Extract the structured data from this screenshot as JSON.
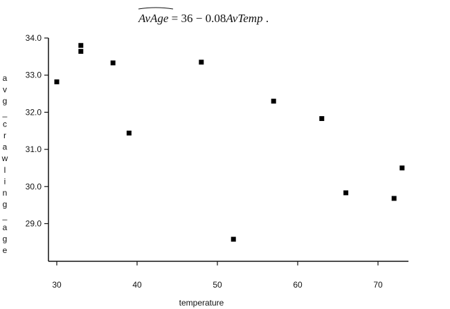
{
  "chart_data": {
    "type": "scatter",
    "title": {
      "lhs": "AvAge",
      "equals": " = ",
      "intercept": "36",
      "minus": " − ",
      "slope": "0.08",
      "rhs": "AvTemp",
      "end": " ."
    },
    "xlabel": "temperature",
    "ylabel": "avg_crawling_age",
    "xlim": [
      29.5,
      74
    ],
    "ylim": [
      28.0,
      34.1
    ],
    "xticks": [
      30,
      40,
      50,
      60,
      70
    ],
    "yticks": [
      29.0,
      30.0,
      31.0,
      32.0,
      33.0,
      34.0
    ],
    "ytick_labels": [
      "29.0",
      "30.0",
      "31.0",
      "32.0",
      "33.0",
      "34.0"
    ],
    "marker": "square",
    "color": "#000000",
    "points": [
      {
        "x": 30,
        "y": 32.82
      },
      {
        "x": 33,
        "y": 33.8
      },
      {
        "x": 33,
        "y": 33.64
      },
      {
        "x": 37,
        "y": 33.33
      },
      {
        "x": 39,
        "y": 31.44
      },
      {
        "x": 48,
        "y": 33.35
      },
      {
        "x": 52,
        "y": 28.58
      },
      {
        "x": 57,
        "y": 32.3
      },
      {
        "x": 63,
        "y": 31.83
      },
      {
        "x": 66,
        "y": 29.83
      },
      {
        "x": 72,
        "y": 29.68
      },
      {
        "x": 73,
        "y": 30.5
      }
    ]
  }
}
